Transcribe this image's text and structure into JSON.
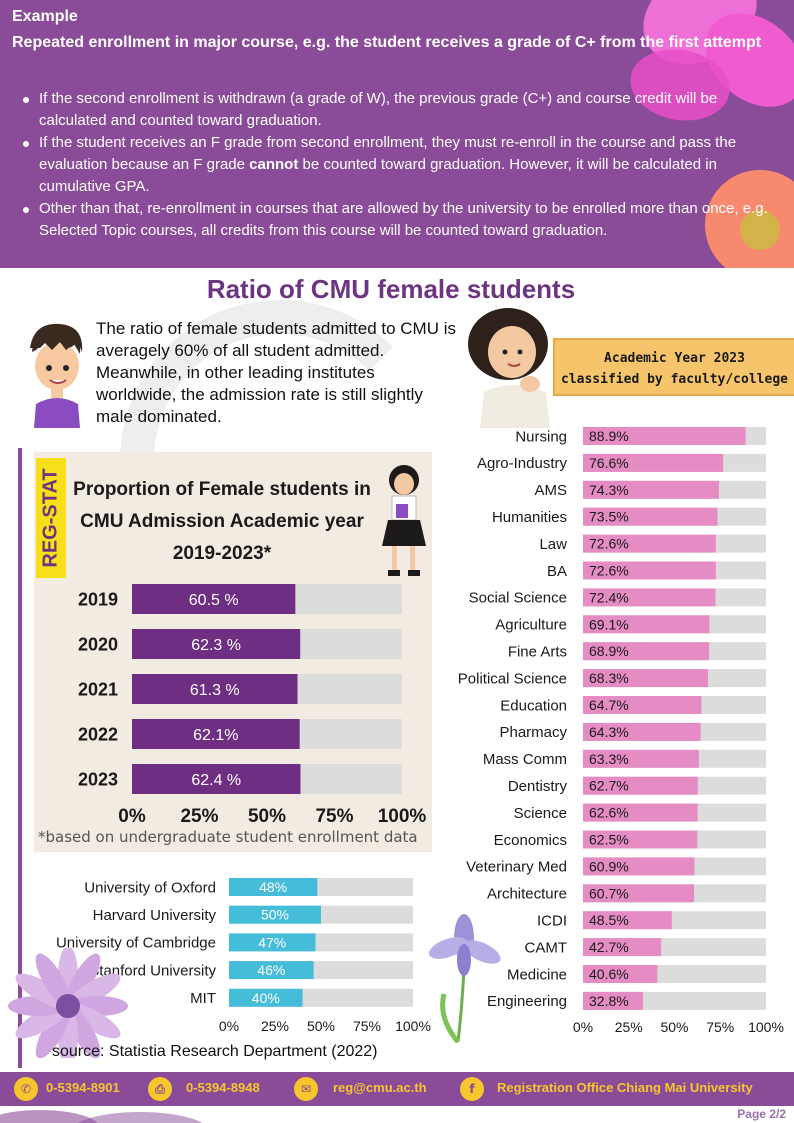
{
  "example": {
    "label": "Example",
    "heading": "Repeated enrollment in major course, e.g. the student receives a grade of C+ from the first attempt",
    "bullets": [
      "If the second enrollment is withdrawn (a grade of W), the previous grade (C+) and course credit will be calculated and counted toward graduation.",
      "If the student receives an F grade from second enrollment, they must re-enroll in the course and pass the evaluation because an F grade ",
      "Other than that, re-enrollment in courses that are allowed by the university to be enrolled more than once, e.g. Selected Topic courses, all credits from this course will be counted toward graduation."
    ],
    "bullet2_bold": "cannot",
    "bullet2_rest": " be counted toward graduation. However, it will be calculated in cumulative GPA."
  },
  "title": "Ratio of CMU female students",
  "intro": "The ratio of female students admitted to CMU is averagely 60% of all student admitted. Meanwhile, in other leading institutes worldwide, the admission rate is still slightly  male dominated.",
  "regstat": "REG-STAT",
  "academic_box": {
    "line1": "Academic Year 2023",
    "line2": "classified by faculty/college"
  },
  "source": "source: Statistia Research Department (2022)",
  "footer": {
    "phone1": "0-5394-8901",
    "phone2": "0-5394-8948",
    "email": "reg@cmu.ac.th",
    "facebook": "Registration Office Chiang Mai University",
    "page": "Page 2/2"
  },
  "colors": {
    "purple": "#8a4c98",
    "bar_purple": "#6e2e82",
    "bar_blue": "#45bcd8",
    "bar_pink": "#e58cc4",
    "track_grey": "#dcdcdc",
    "accent_yellow": "#f7c52c"
  },
  "chart_data": [
    {
      "type": "bar",
      "orientation": "horizontal",
      "title": "Proportion of Female students in CMU Admission Academic year 2019-2023*",
      "categories": [
        "2019",
        "2020",
        "2021",
        "2022",
        "2023"
      ],
      "values": [
        60.5,
        62.3,
        61.3,
        62.1,
        62.4
      ],
      "value_labels": [
        "60.5 %",
        "62.3 %",
        "61.3 %",
        "62.1%",
        "62.4 %"
      ],
      "ticks": [
        "0%",
        "25%",
        "50%",
        "75%",
        "100%"
      ],
      "xlim": [
        0,
        100
      ],
      "note": "*based on undergraduate student enrollment data"
    },
    {
      "type": "bar",
      "orientation": "horizontal",
      "categories": [
        "University of Oxford",
        "Harvard University",
        "University of Cambridge",
        "Stanford University",
        "MIT"
      ],
      "values": [
        48,
        50,
        47,
        46,
        40
      ],
      "value_labels": [
        "48%",
        "50%",
        "47%",
        "46%",
        "40%"
      ],
      "ticks": [
        "0%",
        "25%",
        "50%",
        "75%",
        "100%"
      ],
      "xlim": [
        0,
        100
      ]
    },
    {
      "type": "bar",
      "orientation": "horizontal",
      "categories": [
        "Nursing",
        "Agro-Industry",
        "AMS",
        "Humanities",
        "Law",
        "BA",
        "Social Science",
        "Agriculture",
        "Fine Arts",
        "Political Science",
        "Education",
        "Pharmacy",
        "Mass Comm",
        "Dentistry",
        "Science",
        "Economics",
        "Veterinary Med",
        "Architecture",
        "ICDI",
        "CAMT",
        "Medicine",
        "Engineering"
      ],
      "values": [
        88.9,
        76.6,
        74.3,
        73.5,
        72.6,
        72.6,
        72.4,
        69.1,
        68.9,
        68.3,
        64.7,
        64.3,
        63.3,
        62.7,
        62.6,
        62.5,
        60.9,
        60.7,
        48.5,
        42.7,
        40.6,
        32.8
      ],
      "value_labels": [
        "88.9%",
        "76.6%",
        "74.3%",
        "73.5%",
        "72.6%",
        "72.6%",
        "72.4%",
        "69.1%",
        "68.9%",
        "68.3%",
        "64.7%",
        "64.3%",
        "63.3%",
        "62.7%",
        "62.6%",
        "62.5%",
        "60.9%",
        "60.7%",
        "48.5%",
        "42.7%",
        "40.6%",
        "32.8%"
      ],
      "ticks": [
        "0%",
        "25%",
        "50%",
        "75%",
        "100%"
      ],
      "xlim": [
        0,
        100
      ]
    }
  ]
}
